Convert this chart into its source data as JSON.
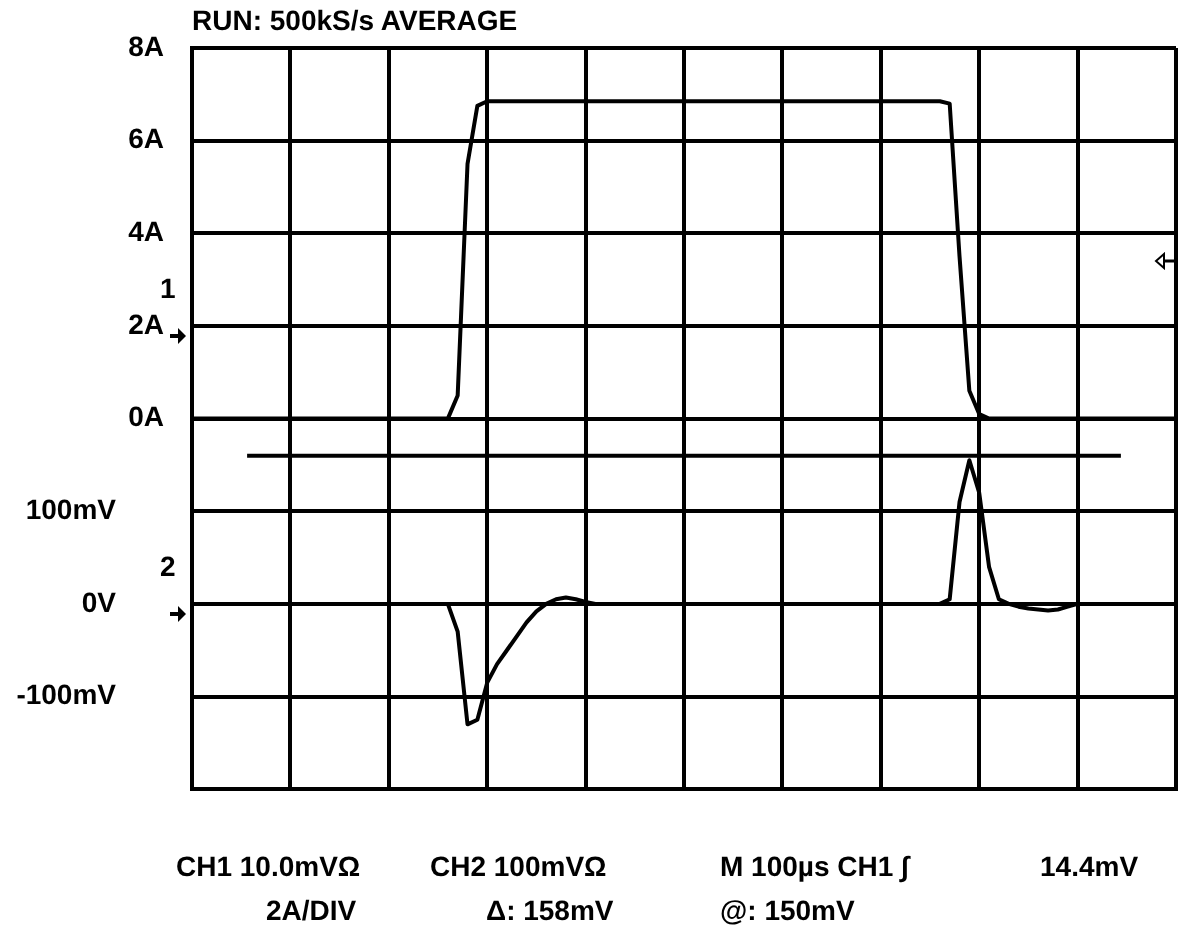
{
  "chart_data": {
    "type": "line",
    "title": "RUN: 500kS/s AVERAGE",
    "categories": [
      null,
      null,
      null,
      null,
      null,
      null,
      null,
      null,
      null,
      null,
      null,
      null,
      null,
      null,
      null,
      null,
      null,
      null,
      null,
      null,
      null,
      null,
      null,
      null,
      null,
      null,
      null,
      null,
      null,
      null,
      null,
      null,
      null,
      null,
      null,
      null,
      null,
      null,
      null,
      null,
      null,
      null,
      null,
      null,
      null,
      null,
      null,
      null,
      null,
      null,
      null,
      null,
      null,
      null,
      null,
      null,
      null,
      null,
      null,
      null,
      null,
      null,
      null,
      null,
      null,
      null,
      null,
      null,
      null,
      null,
      null,
      null,
      null,
      null,
      null,
      null,
      null,
      null,
      null,
      null,
      null,
      null,
      null,
      null,
      null,
      null,
      null,
      null,
      null,
      null,
      null,
      null,
      null,
      null,
      null,
      null,
      null,
      null,
      null,
      null,
      null
    ],
    "series": [
      {
        "color": "#000000",
        "axis": "y",
        "values": [
          0,
          0,
          0,
          0,
          0,
          0,
          0,
          0,
          0,
          0,
          0,
          0,
          0,
          0,
          0,
          0,
          0,
          0,
          0,
          0,
          0,
          0,
          0,
          0,
          0,
          0,
          0,
          0.5,
          5.5,
          6.75,
          6.85,
          6.85,
          6.85,
          6.85,
          6.85,
          6.85,
          6.85,
          6.85,
          6.85,
          6.85,
          6.85,
          6.85,
          6.85,
          6.85,
          6.85,
          6.85,
          6.85,
          6.85,
          6.85,
          6.85,
          6.85,
          6.85,
          6.85,
          6.85,
          6.85,
          6.85,
          6.85,
          6.85,
          6.85,
          6.85,
          6.85,
          6.85,
          6.85,
          6.85,
          6.85,
          6.85,
          6.85,
          6.85,
          6.85,
          6.85,
          6.85,
          6.85,
          6.85,
          6.85,
          6.85,
          6.85,
          6.85,
          6.8,
          3.5,
          0.6,
          0.1,
          0,
          0,
          0,
          0,
          0,
          0,
          0,
          0,
          0,
          0,
          0,
          0,
          0,
          0,
          0,
          0,
          0,
          0,
          0,
          0
        ]
      },
      {
        "color": "#000000",
        "axis": "y2",
        "values": [
          0,
          0,
          0,
          0,
          0,
          0,
          0,
          0,
          0,
          0,
          0,
          0,
          0,
          0,
          0,
          0,
          0,
          0,
          0,
          0,
          0,
          0,
          0,
          0,
          0,
          0,
          0,
          -30,
          -130,
          -125,
          -85,
          -65,
          -50,
          -35,
          -20,
          -8,
          0,
          5,
          7,
          5,
          2,
          0,
          0,
          0,
          0,
          0,
          0,
          0,
          0,
          0,
          0,
          0,
          0,
          0,
          0,
          0,
          0,
          0,
          0,
          0,
          0,
          0,
          0,
          0,
          0,
          0,
          0,
          0,
          0,
          0,
          0,
          0,
          0,
          0,
          0,
          0,
          0,
          5,
          110,
          155,
          120,
          40,
          5,
          0,
          -3,
          -5,
          -6,
          -7,
          -6,
          -3,
          0,
          0,
          0,
          0,
          0,
          0,
          0,
          0,
          0,
          0,
          0
        ]
      }
    ],
    "ylim": [
      -8,
      8
    ],
    "yticks": [
      {
        "value": 0,
        "label": "0A"
      },
      {
        "value": 2,
        "label": "2A"
      },
      {
        "value": 4,
        "label": "4A"
      },
      {
        "value": 6,
        "label": "6A"
      },
      {
        "value": 8,
        "label": "8A"
      }
    ],
    "y2lim": [
      -200,
      600
    ],
    "y2ticks": [
      {
        "value": -100,
        "label": "-100mV"
      },
      {
        "value": 0,
        "label": "0V"
      },
      {
        "value": 100,
        "label": "100mV"
      }
    ],
    "ref_lines": [
      {
        "axis": "y2",
        "value": 160,
        "color": "#000000"
      }
    ],
    "annotations": [
      "1",
      "2",
      "CH1  10.0mVΩ",
      "CH2  100mVΩ",
      "M 100µs  CH1 ∫",
      "14.4mV",
      "2A/DIV",
      "Δ: 158mV",
      "@: 150mV"
    ],
    "grid": true,
    "legend": false,
    "marker": "none",
    "line_style": "solid"
  }
}
